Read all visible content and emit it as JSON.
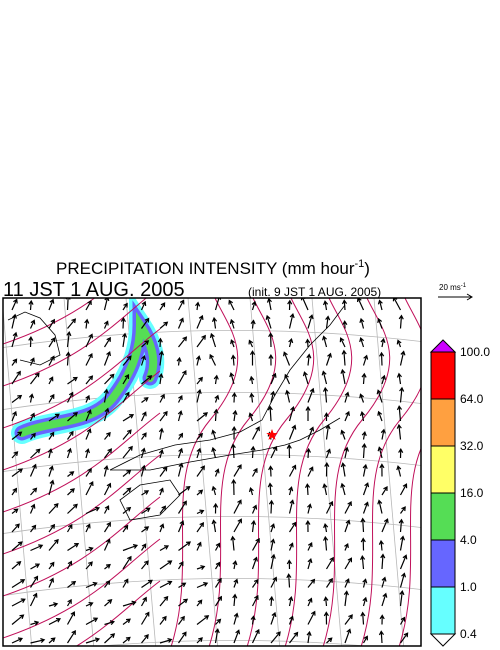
{
  "title": {
    "text": "PRECIPITATION INTENSITY (mm hour",
    "superscript": "-1",
    "close": ")"
  },
  "valid_time": "11 JST 1 AUG. 2005",
  "init_time": "(init. 9 JST 1 AUG. 2005)",
  "vector_scale": {
    "label": "20 ms",
    "superscript": "-1"
  },
  "colorbar": {
    "over_color": "#cc00ff",
    "under_color": "#ffffff",
    "levels": [
      "100.0",
      "64.0",
      "32.0",
      "16.0",
      "4.0",
      "1.0",
      "0.4"
    ],
    "colors": [
      "#ff0000",
      "#ffa040",
      "#ffff66",
      "#55dd55",
      "#6666ff",
      "#66ffff"
    ]
  }
}
